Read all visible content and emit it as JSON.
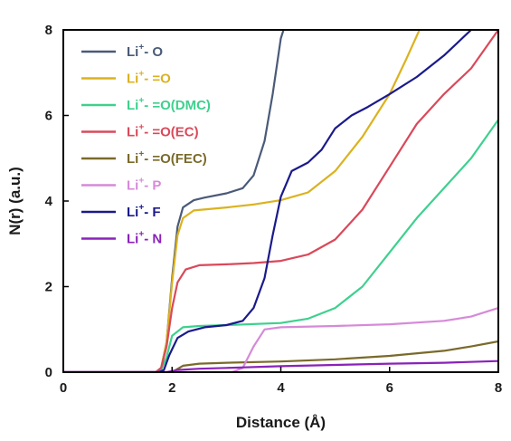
{
  "chart_data": {
    "type": "line",
    "xlabel": "Distance (Å)",
    "ylabel": "N(r) (a.u.)",
    "xlim": [
      0,
      8
    ],
    "ylim": [
      0,
      8
    ],
    "xticks": [
      "0",
      "2",
      "4",
      "6",
      "8"
    ],
    "yticks": [
      "0",
      "2",
      "4",
      "6",
      "8"
    ],
    "grid": false,
    "legend_position": "top-left",
    "series": [
      {
        "name": "Li⁺- O",
        "legend_prefix": "Li",
        "legend_sup": "+",
        "legend_suffix": "- O",
        "color": "#4a5a78",
        "points": [
          [
            0,
            0
          ],
          [
            1.7,
            0
          ],
          [
            1.8,
            0.1
          ],
          [
            1.9,
            0.7
          ],
          [
            2.0,
            2.2
          ],
          [
            2.1,
            3.4
          ],
          [
            2.2,
            3.85
          ],
          [
            2.4,
            4.02
          ],
          [
            2.6,
            4.08
          ],
          [
            3.0,
            4.18
          ],
          [
            3.3,
            4.3
          ],
          [
            3.5,
            4.6
          ],
          [
            3.7,
            5.4
          ],
          [
            3.85,
            6.5
          ],
          [
            4.0,
            7.8
          ],
          [
            4.05,
            8.0
          ]
        ]
      },
      {
        "name": "Li⁺- =O",
        "legend_prefix": "Li",
        "legend_sup": "+",
        "legend_suffix": "- =O",
        "color": "#dbb21f",
        "points": [
          [
            0,
            0
          ],
          [
            1.7,
            0
          ],
          [
            1.8,
            0.1
          ],
          [
            1.9,
            0.7
          ],
          [
            2.0,
            2.1
          ],
          [
            2.1,
            3.2
          ],
          [
            2.2,
            3.6
          ],
          [
            2.4,
            3.78
          ],
          [
            3.0,
            3.85
          ],
          [
            3.5,
            3.92
          ],
          [
            4.0,
            4.02
          ],
          [
            4.5,
            4.2
          ],
          [
            5.0,
            4.7
          ],
          [
            5.5,
            5.5
          ],
          [
            6.0,
            6.5
          ],
          [
            6.3,
            7.3
          ],
          [
            6.55,
            8.0
          ]
        ]
      },
      {
        "name": "Li⁺- =O(DMC)",
        "legend_prefix": "Li",
        "legend_sup": "+",
        "legend_suffix": "- =O(DMC)",
        "color": "#3ed08e",
        "points": [
          [
            0,
            0
          ],
          [
            1.7,
            0
          ],
          [
            1.8,
            0.05
          ],
          [
            1.9,
            0.35
          ],
          [
            2.0,
            0.85
          ],
          [
            2.2,
            1.05
          ],
          [
            2.5,
            1.08
          ],
          [
            3.0,
            1.1
          ],
          [
            4.0,
            1.15
          ],
          [
            4.5,
            1.25
          ],
          [
            5.0,
            1.5
          ],
          [
            5.5,
            2.0
          ],
          [
            6.0,
            2.8
          ],
          [
            6.5,
            3.6
          ],
          [
            7.0,
            4.3
          ],
          [
            7.5,
            5.0
          ],
          [
            8.0,
            5.9
          ]
        ]
      },
      {
        "name": "Li⁺- =O(EC)",
        "legend_prefix": "Li",
        "legend_sup": "+",
        "legend_suffix": "- =O(EC)",
        "color": "#d9495a",
        "points": [
          [
            0,
            0
          ],
          [
            1.7,
            0
          ],
          [
            1.8,
            0.1
          ],
          [
            1.9,
            0.6
          ],
          [
            2.0,
            1.5
          ],
          [
            2.1,
            2.1
          ],
          [
            2.25,
            2.4
          ],
          [
            2.5,
            2.5
          ],
          [
            3.0,
            2.52
          ],
          [
            3.5,
            2.55
          ],
          [
            4.0,
            2.6
          ],
          [
            4.5,
            2.75
          ],
          [
            5.0,
            3.1
          ],
          [
            5.5,
            3.8
          ],
          [
            6.0,
            4.8
          ],
          [
            6.5,
            5.8
          ],
          [
            7.0,
            6.5
          ],
          [
            7.5,
            7.1
          ],
          [
            8.0,
            8.0
          ]
        ]
      },
      {
        "name": "Li⁺- =O(FEC)",
        "legend_prefix": "Li",
        "legend_sup": "+",
        "legend_suffix": "- =O(FEC)",
        "color": "#7a6a2a",
        "points": [
          [
            0,
            0
          ],
          [
            2.0,
            0
          ],
          [
            2.2,
            0.15
          ],
          [
            2.5,
            0.2
          ],
          [
            3.0,
            0.22
          ],
          [
            4.0,
            0.25
          ],
          [
            5.0,
            0.3
          ],
          [
            6.0,
            0.38
          ],
          [
            7.0,
            0.5
          ],
          [
            7.5,
            0.6
          ],
          [
            8.0,
            0.72
          ]
        ]
      },
      {
        "name": "Li⁺- P",
        "legend_prefix": "Li",
        "legend_sup": "+",
        "legend_suffix": "- P",
        "color": "#d68ad8",
        "points": [
          [
            0,
            0
          ],
          [
            3.1,
            0
          ],
          [
            3.3,
            0.1
          ],
          [
            3.5,
            0.6
          ],
          [
            3.7,
            1.0
          ],
          [
            4.0,
            1.05
          ],
          [
            5.0,
            1.08
          ],
          [
            6.0,
            1.12
          ],
          [
            7.0,
            1.2
          ],
          [
            7.5,
            1.3
          ],
          [
            8.0,
            1.5
          ]
        ]
      },
      {
        "name": "Li⁺- F",
        "legend_prefix": "Li",
        "legend_sup": "+",
        "legend_suffix": "- F",
        "color": "#1a1a8c",
        "points": [
          [
            0,
            0
          ],
          [
            1.75,
            0
          ],
          [
            1.85,
            0.05
          ],
          [
            1.95,
            0.4
          ],
          [
            2.1,
            0.8
          ],
          [
            2.3,
            0.95
          ],
          [
            2.6,
            1.05
          ],
          [
            3.0,
            1.1
          ],
          [
            3.3,
            1.2
          ],
          [
            3.5,
            1.5
          ],
          [
            3.7,
            2.2
          ],
          [
            3.85,
            3.2
          ],
          [
            4.0,
            4.1
          ],
          [
            4.2,
            4.7
          ],
          [
            4.5,
            4.9
          ],
          [
            4.75,
            5.2
          ],
          [
            5.0,
            5.7
          ],
          [
            5.3,
            6.0
          ],
          [
            5.6,
            6.2
          ],
          [
            6.0,
            6.5
          ],
          [
            6.5,
            6.9
          ],
          [
            7.0,
            7.4
          ],
          [
            7.5,
            8.0
          ]
        ]
      },
      {
        "name": "Li⁺- N",
        "legend_prefix": "Li",
        "legend_sup": "+",
        "legend_suffix": "- N",
        "color": "#8a22b8",
        "points": [
          [
            0,
            0
          ],
          [
            1.9,
            0
          ],
          [
            2.1,
            0.05
          ],
          [
            2.5,
            0.08
          ],
          [
            3.0,
            0.1
          ],
          [
            4.0,
            0.14
          ],
          [
            5.0,
            0.17
          ],
          [
            6.0,
            0.2
          ],
          [
            7.0,
            0.22
          ],
          [
            8.0,
            0.26
          ]
        ]
      }
    ]
  }
}
